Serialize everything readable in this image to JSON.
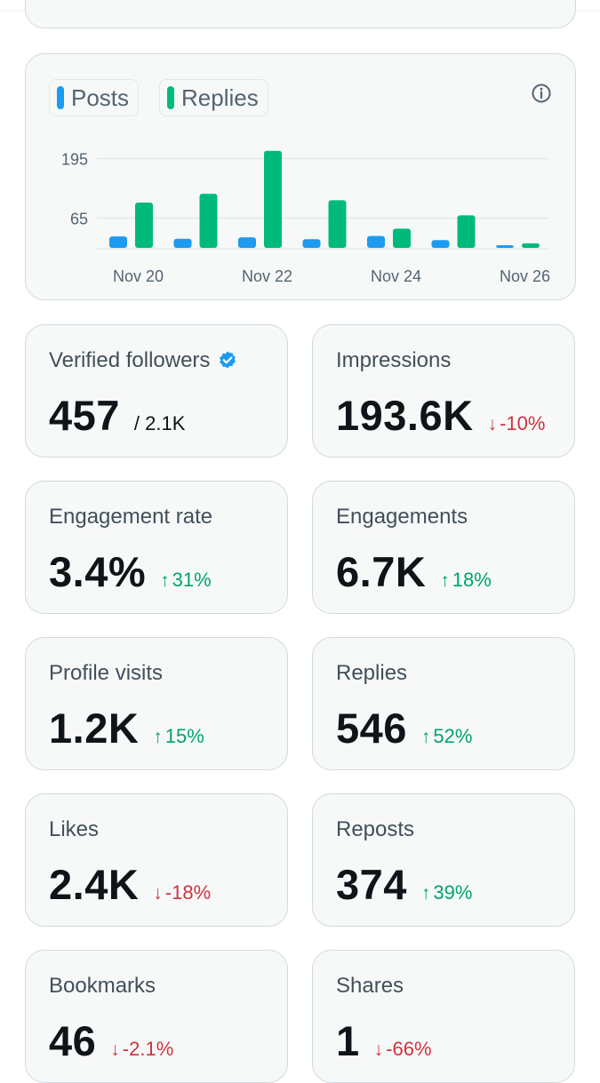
{
  "chart": {
    "legend": [
      {
        "label": "Posts",
        "color": "#1d9bf0"
      },
      {
        "label": "Replies",
        "color": "#00ba7c"
      }
    ],
    "info_icon": "info-icon",
    "chart_data": {
      "type": "bar",
      "categories": [
        "Nov 20",
        "Nov 21",
        "Nov 22",
        "Nov 23",
        "Nov 24",
        "Nov 25",
        "Nov 26"
      ],
      "x_tick_labels": [
        "Nov 20",
        "Nov 22",
        "Nov 24",
        "Nov 26"
      ],
      "y_tick_labels": [
        "195",
        "65"
      ],
      "y_ticks": [
        195,
        65
      ],
      "ylim": [
        0,
        225
      ],
      "series": [
        {
          "name": "Posts",
          "color": "#1d9bf0",
          "values": [
            25,
            20,
            23,
            19,
            26,
            17,
            4
          ]
        },
        {
          "name": "Replies",
          "color": "#00ba7c",
          "values": [
            99,
            118,
            212,
            104,
            42,
            71,
            10
          ]
        }
      ],
      "grid": true,
      "legend_position": "top-left"
    }
  },
  "metrics": [
    {
      "label": "Verified followers",
      "value": "457",
      "sub": "/ 2.1K",
      "verified": true
    },
    {
      "label": "Impressions",
      "value": "193.6K",
      "change": "-10%",
      "direction": "down"
    },
    {
      "label": "Engagement rate",
      "value": "3.4%",
      "change": "31%",
      "direction": "up"
    },
    {
      "label": "Engagements",
      "value": "6.7K",
      "change": "18%",
      "direction": "up"
    },
    {
      "label": "Profile visits",
      "value": "1.2K",
      "change": "15%",
      "direction": "up"
    },
    {
      "label": "Replies",
      "value": "546",
      "change": "52%",
      "direction": "up"
    },
    {
      "label": "Likes",
      "value": "2.4K",
      "change": "-18%",
      "direction": "down"
    },
    {
      "label": "Reposts",
      "value": "374",
      "change": "39%",
      "direction": "up"
    },
    {
      "label": "Bookmarks",
      "value": "46",
      "change": "-2.1%",
      "direction": "down"
    },
    {
      "label": "Shares",
      "value": "1",
      "change": "-66%",
      "direction": "down"
    }
  ],
  "arrows": {
    "up": "↑",
    "down": "↓"
  }
}
